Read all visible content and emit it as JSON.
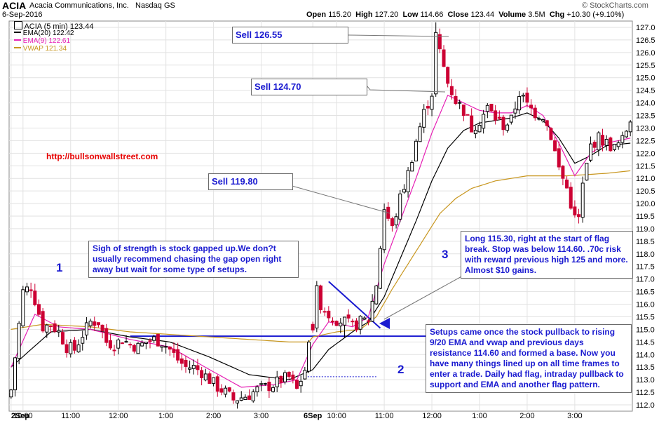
{
  "header": {
    "symbol": "ACIA",
    "company": "Acacia Communications, Inc.",
    "exchange": "Nasdaq GS",
    "date": "6-Sep-2016",
    "watermark": "© StockCharts.com",
    "open_label": "Open",
    "open": "115.20",
    "high_label": "High",
    "high": "127.20",
    "low_label": "Low",
    "low": "114.66",
    "close_label": "Close",
    "close": "123.44",
    "volume_label": "Volume",
    "volume": "3.5M",
    "chg_label": "Chg",
    "chg": "+10.30 (+9.10%)"
  },
  "legend": {
    "price": "ACIA (5 min) 123.44",
    "ema20": "EMA(20) 122.42",
    "ema9": "EMA(9) 122.61",
    "vwap": "VWAP 121.34"
  },
  "colors": {
    "up": "#000000",
    "down": "#cc0033",
    "ema20": "#000000",
    "ema9": "#e61eb4",
    "vwap": "#c8961e",
    "annotation": "#1a1ad0",
    "url": "#e60000",
    "grid": "#e2e2e2"
  },
  "chart_data": {
    "type": "candlestick",
    "ylim": [
      111.75,
      127.25
    ],
    "yticks": [
      "127.0",
      "126.5",
      "126.0",
      "125.5",
      "125.0",
      "124.5",
      "124.0",
      "123.5",
      "123.0",
      "122.5",
      "122.0",
      "121.5",
      "121.0",
      "120.5",
      "120.0",
      "119.5",
      "119.0",
      "118.5",
      "118.0",
      "117.5",
      "117.0",
      "116.5",
      "116.0",
      "115.5",
      "115.0",
      "114.5",
      "114.0",
      "113.5",
      "113.0",
      "112.5",
      "112.0"
    ],
    "xticks": [
      {
        "i": 0,
        "label": "2Sep"
      },
      {
        "i": 3,
        "label": "10:00"
      },
      {
        "i": 15,
        "label": "11:00"
      },
      {
        "i": 27,
        "label": "12:00"
      },
      {
        "i": 39,
        "label": "1:00"
      },
      {
        "i": 51,
        "label": "2:00"
      },
      {
        "i": 63,
        "label": "3:00"
      },
      {
        "i": 76,
        "label": "6Sep"
      },
      {
        "i": 82,
        "label": "10:00"
      },
      {
        "i": 94,
        "label": "11:00"
      },
      {
        "i": 106,
        "label": "12:00"
      },
      {
        "i": 118,
        "label": "1:00"
      },
      {
        "i": 130,
        "label": "2:00"
      },
      {
        "i": 142,
        "label": "3:00"
      }
    ],
    "anchors": {
      "close": [
        [
          0,
          112.6
        ],
        [
          3,
          116.5
        ],
        [
          5,
          116.7
        ],
        [
          8,
          115.1
        ],
        [
          10,
          115.2
        ],
        [
          12,
          114.9
        ],
        [
          14,
          114.3
        ],
        [
          16,
          114.2
        ],
        [
          18,
          114.8
        ],
        [
          20,
          115.3
        ],
        [
          22,
          115.3
        ],
        [
          24,
          114.5
        ],
        [
          26,
          114.4
        ],
        [
          28,
          114.6
        ],
        [
          30,
          114.4
        ],
        [
          32,
          114.3
        ],
        [
          34,
          114.5
        ],
        [
          36,
          114.6
        ],
        [
          38,
          114.5
        ],
        [
          40,
          114.2
        ],
        [
          42,
          113.8
        ],
        [
          44,
          113.5
        ],
        [
          46,
          113.5
        ],
        [
          48,
          113.3
        ],
        [
          50,
          113.0
        ],
        [
          52,
          112.7
        ],
        [
          54,
          112.5
        ],
        [
          56,
          112.2
        ],
        [
          58,
          112.3
        ],
        [
          60,
          112.4
        ],
        [
          62,
          112.6
        ],
        [
          64,
          112.7
        ],
        [
          66,
          112.8
        ],
        [
          68,
          113.0
        ],
        [
          70,
          113.1
        ],
        [
          72,
          112.6
        ],
        [
          74,
          113.4
        ],
        [
          76,
          115.2
        ],
        [
          77,
          116.5
        ],
        [
          78,
          116.0
        ],
        [
          80,
          115.6
        ],
        [
          82,
          115.4
        ],
        [
          84,
          115.3
        ],
        [
          86,
          115.1
        ],
        [
          88,
          115.3
        ],
        [
          90,
          115.4
        ],
        [
          92,
          116.8
        ],
        [
          94,
          119.8
        ],
        [
          96,
          119.0
        ],
        [
          98,
          120.2
        ],
        [
          100,
          121.2
        ],
        [
          102,
          122.5
        ],
        [
          104,
          123.6
        ],
        [
          106,
          124.4
        ],
        [
          107,
          126.7
        ],
        [
          108,
          126.0
        ],
        [
          110,
          124.8
        ],
        [
          112,
          124.1
        ],
        [
          114,
          123.7
        ],
        [
          116,
          123.0
        ],
        [
          118,
          123.3
        ],
        [
          120,
          123.8
        ],
        [
          122,
          123.4
        ],
        [
          124,
          123.1
        ],
        [
          126,
          123.3
        ],
        [
          128,
          124.4
        ],
        [
          130,
          123.9
        ],
        [
          132,
          123.6
        ],
        [
          134,
          123.5
        ],
        [
          136,
          122.7
        ],
        [
          138,
          121.4
        ],
        [
          140,
          120.6
        ],
        [
          142,
          119.4
        ],
        [
          143,
          119.4
        ],
        [
          144,
          120.7
        ],
        [
          146,
          122.3
        ],
        [
          148,
          122.6
        ],
        [
          150,
          122.4
        ],
        [
          152,
          122.2
        ],
        [
          154,
          122.5
        ],
        [
          156,
          123.4
        ]
      ],
      "ema20": [
        [
          0,
          113.5
        ],
        [
          10,
          114.9
        ],
        [
          20,
          115.0
        ],
        [
          30,
          114.7
        ],
        [
          40,
          114.5
        ],
        [
          50,
          113.9
        ],
        [
          60,
          113.2
        ],
        [
          70,
          113.0
        ],
        [
          76,
          113.4
        ],
        [
          80,
          114.2
        ],
        [
          86,
          114.9
        ],
        [
          90,
          115.3
        ],
        [
          94,
          116.3
        ],
        [
          98,
          117.8
        ],
        [
          102,
          119.3
        ],
        [
          106,
          120.9
        ],
        [
          110,
          122.2
        ],
        [
          114,
          122.9
        ],
        [
          118,
          123.2
        ],
        [
          122,
          123.3
        ],
        [
          126,
          123.4
        ],
        [
          130,
          123.6
        ],
        [
          134,
          123.3
        ],
        [
          138,
          122.6
        ],
        [
          142,
          121.6
        ],
        [
          146,
          121.9
        ],
        [
          150,
          122.3
        ],
        [
          156,
          122.4
        ]
      ],
      "ema9": [
        [
          0,
          113.5
        ],
        [
          6,
          115.6
        ],
        [
          12,
          115.1
        ],
        [
          20,
          115.0
        ],
        [
          30,
          114.6
        ],
        [
          40,
          114.3
        ],
        [
          50,
          113.4
        ],
        [
          58,
          112.7
        ],
        [
          66,
          112.8
        ],
        [
          72,
          113.0
        ],
        [
          76,
          114.4
        ],
        [
          80,
          115.3
        ],
        [
          86,
          115.1
        ],
        [
          90,
          115.5
        ],
        [
          94,
          117.6
        ],
        [
          98,
          119.3
        ],
        [
          102,
          121.0
        ],
        [
          106,
          122.8
        ],
        [
          110,
          124.3
        ],
        [
          114,
          124.0
        ],
        [
          118,
          123.7
        ],
        [
          122,
          123.6
        ],
        [
          126,
          123.6
        ],
        [
          130,
          123.9
        ],
        [
          134,
          123.5
        ],
        [
          138,
          122.4
        ],
        [
          142,
          121.1
        ],
        [
          146,
          122.0
        ],
        [
          150,
          122.4
        ],
        [
          156,
          122.6
        ]
      ],
      "vwap": [
        [
          0,
          115.0
        ],
        [
          8,
          115.2
        ],
        [
          20,
          115.1
        ],
        [
          30,
          114.9
        ],
        [
          40,
          114.8
        ],
        [
          50,
          114.7
        ],
        [
          60,
          114.6
        ],
        [
          70,
          114.5
        ],
        [
          75,
          114.5
        ],
        [
          76,
          114.7
        ],
        [
          82,
          114.9
        ],
        [
          88,
          115.0
        ],
        [
          92,
          115.5
        ],
        [
          96,
          116.6
        ],
        [
          100,
          117.6
        ],
        [
          104,
          118.6
        ],
        [
          108,
          119.6
        ],
        [
          112,
          120.2
        ],
        [
          116,
          120.6
        ],
        [
          122,
          120.9
        ],
        [
          130,
          121.1
        ],
        [
          140,
          121.1
        ],
        [
          150,
          121.2
        ],
        [
          156,
          121.3
        ]
      ]
    },
    "annotations": {
      "sell_1": "Sell 126.55",
      "sell_2": "Sell 124.70",
      "sell_3": "Sell  119.80",
      "url": "http://bullsonwallstreet.com",
      "note_1": "Sigh of strength is stock gapped up.We don?t usually recommend chasing the gap open right away but wait for some type of setups.",
      "note_2": "Long 115.30, right at the start of flag break. Stop was below 114.60. .70c risk with reward previous high 125 and more. Almost $10 gains.",
      "note_3": "Setups came once the stock pullback to rising 9/20 EMA and vwap and previous days resistance 114.60 and formed a base. Now you have many things lined up on all time frames to enter a trade. Daily had flag, intraday pullback to support and EMA and another flag pattern.",
      "num_1": "1",
      "num_2": "2",
      "num_3": "3"
    }
  }
}
